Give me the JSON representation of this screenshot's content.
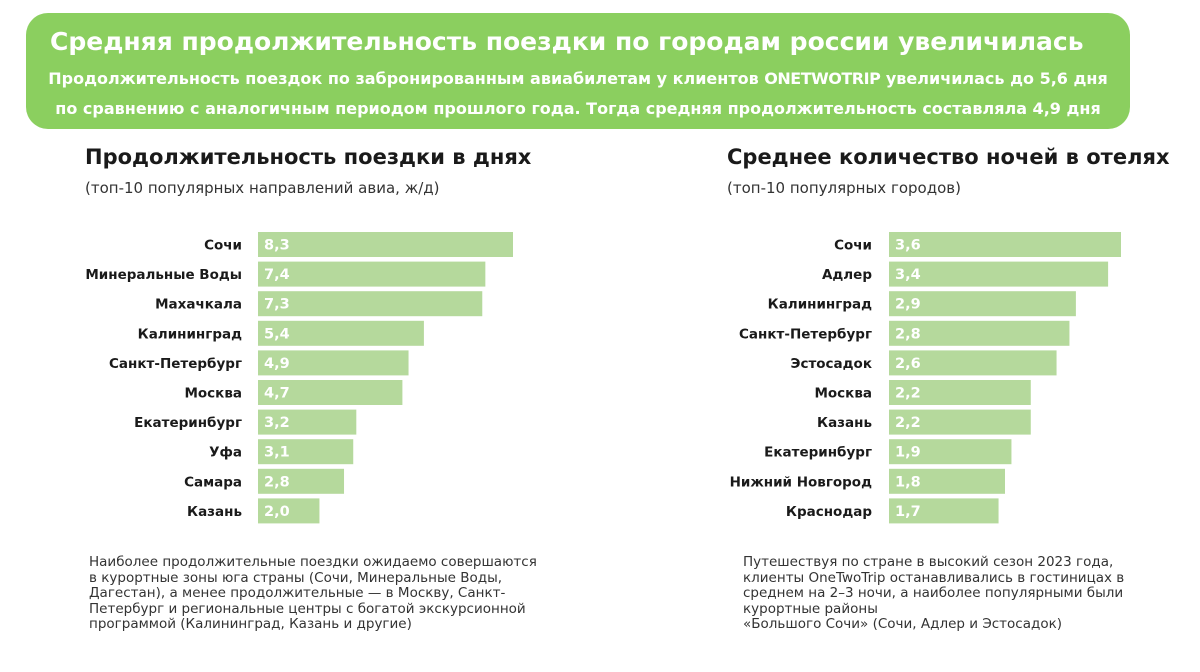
{
  "header": {
    "title": "Средняя продолжительность поездки по городам россии увеличилась",
    "line1_a": "Продолжительность поездок по забронированным авиабилетам у клиентов ",
    "line1_brand": "ONETWOTRIP",
    "line1_b": " увеличилась до 5,6 дня",
    "line2": "по сравнению с аналогичным периодом прошлого года. Тогда средняя продолжительность составляла 4,9 дня"
  },
  "chart_data": [
    {
      "type": "bar",
      "orientation": "horizontal",
      "title": "Продолжительность поездки в днях",
      "subtitle": "(топ-10 популярных направлений авиа, ж/д)",
      "categories": [
        "Сочи",
        "Минеральные Воды",
        "Махачкала",
        "Калининград",
        "Санкт-Петербург",
        "Москва",
        "Екатеринбург",
        "Уфа",
        "Самара",
        "Казань"
      ],
      "values": [
        8.3,
        7.4,
        7.3,
        5.4,
        4.9,
        4.7,
        3.2,
        3.1,
        2.8,
        2.0
      ],
      "value_labels": [
        "8,3",
        "7,4",
        "7,3",
        "5,4",
        "4,9",
        "4,7",
        "3,2",
        "3,1",
        "2,8",
        "2,0"
      ],
      "xlim": [
        0,
        8.3
      ],
      "bar_color": "#b5d99c",
      "note_lines": [
        "Наиболее продолжительные поездки ожидаемо совершаются",
        "в курортные зоны юга страны (Сочи, Минеральные Воды,",
        "Дагестан), а менее продолжительные — в Москву, Санкт-",
        "Петербург и региональные центры с богатой экскурсионной",
        "программой  (Калининград, Казань и другие)"
      ]
    },
    {
      "type": "bar",
      "orientation": "horizontal",
      "title": "Среднее количество ночей в отелях",
      "subtitle": "(топ-10 популярных городов)",
      "categories": [
        "Сочи",
        "Адлер",
        "Калининград",
        "Санкт-Петербург",
        "Эстосадок",
        "Москва",
        "Казань",
        "Екатеринбург",
        "Нижний Новгород",
        "Краснодар"
      ],
      "values": [
        3.6,
        3.4,
        2.9,
        2.8,
        2.6,
        2.2,
        2.2,
        1.9,
        1.8,
        1.7
      ],
      "value_labels": [
        "3,6",
        "3,4",
        "2,9",
        "2,8",
        "2,6",
        "2,2",
        "2,2",
        "1,9",
        "1,8",
        "1,7"
      ],
      "xlim": [
        0,
        3.6
      ],
      "bar_color": "#b5d99c",
      "note_lines": [
        "Путешествуя по стране в высокий сезон 2023 года,",
        "клиенты  OneTwoTrip останавливались в гостиницах в",
        "среднем на 2–3   ночи, а наиболее популярными были",
        "курортные районы",
        "«Большого Сочи» (Сочи, Адлер и Эстосадок)"
      ]
    }
  ],
  "colors": {
    "banner": "#8bcf5f",
    "bar": "#b5d99c",
    "text": "#1a1a1a"
  }
}
